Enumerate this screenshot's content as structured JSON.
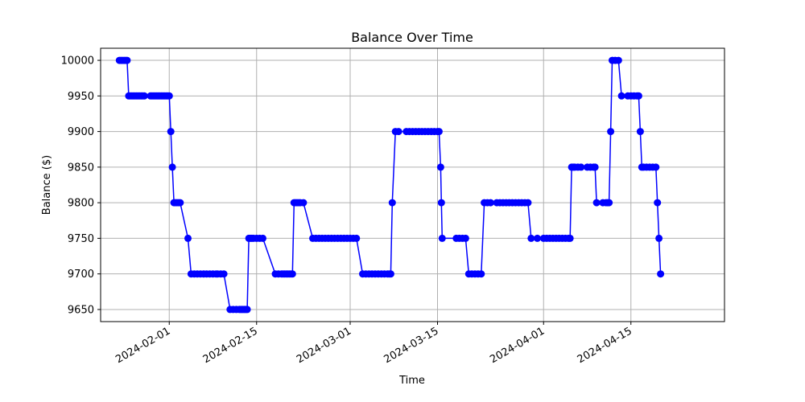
{
  "chart_data": {
    "type": "line",
    "title": "Balance Over Time",
    "xlabel": "Time",
    "ylabel": "Balance ($)",
    "xlim": [
      "2024-01-21",
      "2024-04-30"
    ],
    "ylim": [
      9633,
      10017
    ],
    "x_ticks": [
      "2024-02-01",
      "2024-02-15",
      "2024-03-01",
      "2024-03-15",
      "2024-04-01",
      "2024-04-15"
    ],
    "y_ticks": [
      9650,
      9700,
      9750,
      9800,
      9850,
      9900,
      9950,
      10000
    ],
    "grid": true,
    "marker": "circle",
    "series": [
      {
        "color": "#0000ff",
        "x": [
          "2024-01-24T00:00",
          "2024-01-24T06:00",
          "2024-01-24T12:00",
          "2024-01-24T18:00",
          "2024-01-25T00:00",
          "2024-01-25T06:00",
          "2024-01-25T12:00",
          "2024-01-25T18:00",
          "2024-01-26T00:00",
          "2024-01-26T06:00",
          "2024-01-26T12:00",
          "2024-01-26T18:00",
          "2024-01-27T00:00",
          "2024-01-27T06:00",
          "2024-01-27T12:00",
          "2024-01-27T18:00",
          "2024-01-28T00:00",
          "2024-01-29T00:00",
          "2024-01-29T06:00",
          "2024-01-29T12:00",
          "2024-01-29T18:00",
          "2024-01-30T00:00",
          "2024-01-30T06:00",
          "2024-01-30T12:00",
          "2024-01-30T18:00",
          "2024-01-31T00:00",
          "2024-01-31T06:00",
          "2024-01-31T12:00",
          "2024-01-31T18:00",
          "2024-02-01T00:00",
          "2024-02-01T06:00",
          "2024-02-01T12:00",
          "2024-02-01T18:00",
          "2024-02-02T00:00",
          "2024-02-02T06:00",
          "2024-02-02T12:00",
          "2024-02-02T18:00",
          "2024-02-04T00:00",
          "2024-02-04T12:00",
          "2024-02-05T00:00",
          "2024-02-05T12:00",
          "2024-02-06T00:00",
          "2024-02-06T12:00",
          "2024-02-07T00:00",
          "2024-02-07T12:00",
          "2024-02-08T00:00",
          "2024-02-08T12:00",
          "2024-02-08T18:00",
          "2024-02-09T06:00",
          "2024-02-09T18:00",
          "2024-02-10T18:00",
          "2024-02-11T06:00",
          "2024-02-11T18:00",
          "2024-02-12T06:00",
          "2024-02-12T12:00",
          "2024-02-12T18:00",
          "2024-02-13T00:00",
          "2024-02-13T06:00",
          "2024-02-13T12:00",
          "2024-02-13T18:00",
          "2024-02-14T00:00",
          "2024-02-14T06:00",
          "2024-02-14T12:00",
          "2024-02-15T00:00",
          "2024-02-15T12:00",
          "2024-02-16T00:00",
          "2024-02-18T00:00",
          "2024-02-18T12:00",
          "2024-02-19T00:00",
          "2024-02-19T06:00",
          "2024-02-19T12:00",
          "2024-02-19T18:00",
          "2024-02-20T00:00",
          "2024-02-20T06:00",
          "2024-02-20T12:00",
          "2024-02-20T18:00",
          "2024-02-21T00:00",
          "2024-02-21T06:00",
          "2024-02-21T12:00",
          "2024-02-21T18:00",
          "2024-02-22T00:00",
          "2024-02-22T12:00",
          "2024-02-24T00:00",
          "2024-02-24T12:00",
          "2024-02-25T00:00",
          "2024-02-25T12:00",
          "2024-02-26T00:00",
          "2024-02-26T12:00",
          "2024-02-27T00:00",
          "2024-02-27T12:00",
          "2024-02-28T00:00",
          "2024-02-28T12:00",
          "2024-02-29T00:00",
          "2024-02-29T12:00",
          "2024-03-01T00:00",
          "2024-03-01T12:00",
          "2024-03-02T00:00",
          "2024-03-03T00:00",
          "2024-03-03T12:00",
          "2024-03-04T00:00",
          "2024-03-04T12:00",
          "2024-03-05T00:00",
          "2024-03-05T12:00",
          "2024-03-06T00:00",
          "2024-03-06T12:00",
          "2024-03-07T00:00",
          "2024-03-07T06:00",
          "2024-03-07T12:00",
          "2024-03-07T18:00",
          "2024-03-08T06:00",
          "2024-03-08T18:00",
          "2024-03-10T00:00",
          "2024-03-10T12:00",
          "2024-03-11T00:00",
          "2024-03-11T12:00",
          "2024-03-12T00:00",
          "2024-03-12T12:00",
          "2024-03-13T00:00",
          "2024-03-13T12:00",
          "2024-03-14T00:00",
          "2024-03-14T12:00",
          "2024-03-15T00:00",
          "2024-03-15T06:00",
          "2024-03-15T12:00",
          "2024-03-15T15:00",
          "2024-03-15T18:00",
          "2024-03-18T00:00",
          "2024-03-18T12:00",
          "2024-03-19T00:00",
          "2024-03-19T12:00",
          "2024-03-20T00:00",
          "2024-03-20T12:00",
          "2024-03-21T00:00",
          "2024-03-21T12:00",
          "2024-03-22T00:00",
          "2024-03-22T12:00",
          "2024-03-23T00:00",
          "2024-03-23T12:00",
          "2024-03-24T12:00",
          "2024-03-25T00:00",
          "2024-03-25T12:00",
          "2024-03-26T00:00",
          "2024-03-26T12:00",
          "2024-03-27T00:00",
          "2024-03-27T12:00",
          "2024-03-28T00:00",
          "2024-03-28T12:00",
          "2024-03-29T00:00",
          "2024-03-29T12:00",
          "2024-03-30T00:00",
          "2024-03-31T00:00",
          "2024-04-01T00:00",
          "2024-04-01T12:00",
          "2024-04-02T00:00",
          "2024-04-02T12:00",
          "2024-04-03T00:00",
          "2024-04-03T12:00",
          "2024-04-04T00:00",
          "2024-04-04T12:00",
          "2024-04-05T00:00",
          "2024-04-05T06:00",
          "2024-04-05T12:00",
          "2024-04-05T18:00",
          "2024-04-06T00:00",
          "2024-04-06T12:00",
          "2024-04-07T00:00",
          "2024-04-08T00:00",
          "2024-04-08T12:00",
          "2024-04-09T00:00",
          "2024-04-09T06:00",
          "2024-04-09T12:00",
          "2024-04-10T12:00",
          "2024-04-11T00:00",
          "2024-04-11T06:00",
          "2024-04-11T12:00",
          "2024-04-11T18:00",
          "2024-04-12T00:00",
          "2024-04-12T12:00",
          "2024-04-13T00:00",
          "2024-04-13T12:00",
          "2024-04-14T12:00",
          "2024-04-15T00:00",
          "2024-04-15T12:00",
          "2024-04-16T00:00",
          "2024-04-16T06:00",
          "2024-04-16T12:00",
          "2024-04-16T18:00",
          "2024-04-17T00:00",
          "2024-04-17T12:00",
          "2024-04-18T00:00",
          "2024-04-18T12:00",
          "2024-04-19T00:00",
          "2024-04-19T06:00",
          "2024-04-19T12:00",
          "2024-04-19T18:00"
        ],
        "y": [
          10000,
          10000,
          10000,
          10000,
          10000,
          10000,
          9950,
          9950,
          9950,
          9950,
          9950,
          9950,
          9950,
          9950,
          9950,
          9950,
          9950,
          9950,
          9950,
          9950,
          9950,
          9950,
          9950,
          9950,
          9950,
          9950,
          9950,
          9950,
          9950,
          9950,
          9900,
          9850,
          9800,
          9800,
          9800,
          9800,
          9800,
          9750,
          9700,
          9700,
          9700,
          9700,
          9700,
          9700,
          9700,
          9700,
          9700,
          9700,
          9700,
          9700,
          9650,
          9650,
          9650,
          9650,
          9650,
          9650,
          9650,
          9650,
          9650,
          9750,
          9750,
          9750,
          9750,
          9750,
          9750,
          9750,
          9700,
          9700,
          9700,
          9700,
          9700,
          9700,
          9700,
          9700,
          9700,
          9700,
          9800,
          9800,
          9800,
          9800,
          9800,
          9800,
          9750,
          9750,
          9750,
          9750,
          9750,
          9750,
          9750,
          9750,
          9750,
          9750,
          9750,
          9750,
          9750,
          9750,
          9750,
          9700,
          9700,
          9700,
          9700,
          9700,
          9700,
          9700,
          9700,
          9700,
          9700,
          9700,
          9800,
          9900,
          9900,
          9900,
          9900,
          9900,
          9900,
          9900,
          9900,
          9900,
          9900,
          9900,
          9900,
          9900,
          9900,
          9850,
          9800,
          9750,
          9750,
          9750,
          9750,
          9750,
          9700,
          9700,
          9700,
          9700,
          9700,
          9800,
          9800,
          9800,
          9800,
          9800,
          9800,
          9800,
          9800,
          9800,
          9800,
          9800,
          9800,
          9800,
          9800,
          9750,
          9750,
          9750,
          9750,
          9750,
          9750,
          9750,
          9750,
          9750,
          9750,
          9750,
          9750,
          9850,
          9850,
          9850,
          9850,
          9850,
          9850,
          9850,
          9850,
          9850,
          9800,
          9800,
          9800,
          9800,
          9800,
          9900,
          10000,
          10000,
          10000,
          9950,
          9950,
          9950,
          9950,
          9950,
          9950,
          9900,
          9850,
          9850,
          9850,
          9850,
          9850,
          9850,
          9800,
          9750,
          9700
        ]
      }
    ]
  }
}
